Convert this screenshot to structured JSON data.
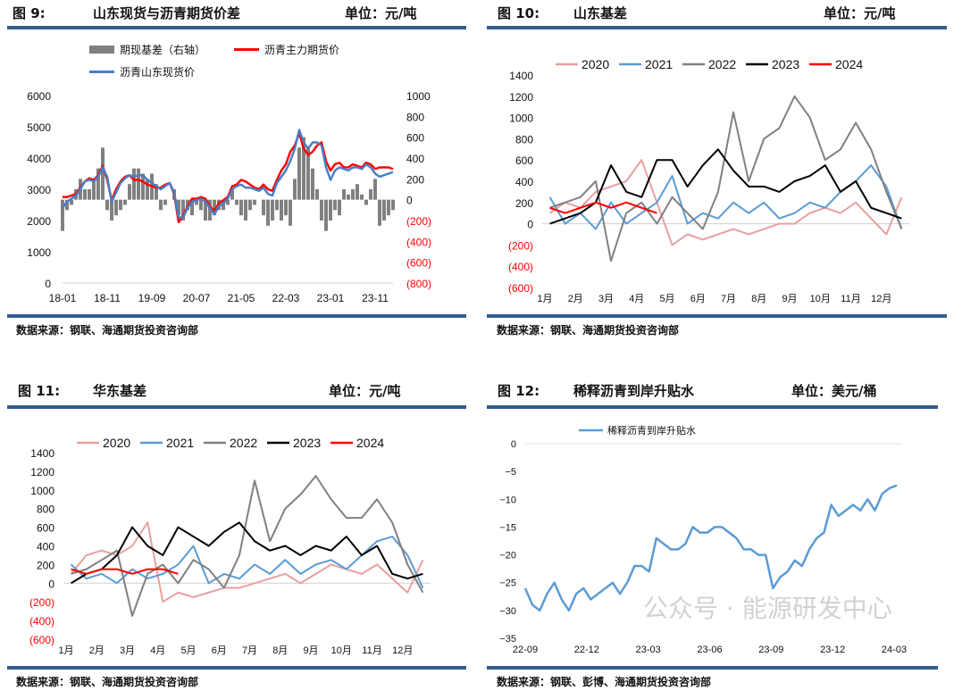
{
  "panels": [
    {
      "fig": "图 9:",
      "title": "山东现货与沥青期货价差",
      "unit": "单位：元/吨",
      "source": "数据来源：钢联、海通期货投资咨询部"
    },
    {
      "fig": "图 10:",
      "title": "山东基差",
      "unit": "单位：元/吨",
      "source": "数据来源：钢联、海通期货投资咨询部"
    },
    {
      "fig": "图 11:",
      "title": "华东基差",
      "unit": "单位：元/吨",
      "source": "数据来源：钢联、海通期货投资咨询部"
    },
    {
      "fig": "图 12:",
      "title": "稀释沥青到岸升贴水",
      "unit": "单位：美元/桶",
      "source": "数据来源：钢联、彭博、海通期货投资咨询部"
    }
  ],
  "watermark": "公众号 · 能源研发中心",
  "chart_data": [
    {
      "type": "line",
      "title": "山东现货与沥青期货价差",
      "x_start": "2018-01",
      "x_step": "month",
      "xticks": [
        "18-01",
        "18-11",
        "19-09",
        "20-07",
        "21-05",
        "22-03",
        "23-01",
        "23-11"
      ],
      "yticks_left": [
        "0",
        "1000",
        "2000",
        "3000",
        "4000",
        "5000",
        "6000"
      ],
      "ylim_left": [
        0,
        6000
      ],
      "yticks_right": [
        "(800)",
        "(600)",
        "(400)",
        "(200)",
        "0",
        "200",
        "400",
        "600",
        "800",
        "1000"
      ],
      "ylim_right": [
        -800,
        1000
      ],
      "series": [
        {
          "name": "期现基差（右轴）",
          "kind": "bar",
          "axis": "right",
          "color": "#808080",
          "values": [
            -300,
            -100,
            -50,
            100,
            200,
            100,
            100,
            200,
            300,
            500,
            -100,
            -200,
            -150,
            -100,
            -50,
            150,
            300,
            300,
            250,
            200,
            250,
            150,
            -100,
            -50,
            0,
            100,
            -150,
            -200,
            -100,
            -150,
            -50,
            -100,
            -200,
            -200,
            -150,
            -100,
            -100,
            -50,
            100,
            -50,
            -150,
            -200,
            -100,
            -50,
            0,
            -150,
            -250,
            -200,
            -100,
            -200,
            -150,
            -250,
            200,
            500,
            600,
            500,
            300,
            100,
            -200,
            -300,
            -200,
            -100,
            -150,
            100,
            50,
            100,
            150,
            50,
            -50,
            100,
            200,
            -250,
            -200,
            -150,
            -100
          ]
        },
        {
          "name": "沥青主力期货价",
          "kind": "line",
          "axis": "left",
          "color": "#ff0000",
          "values": [
            2750,
            2750,
            2800,
            2850,
            3050,
            3250,
            3350,
            3300,
            3450,
            3750,
            3300,
            2650,
            3000,
            3250,
            3400,
            3450,
            3300,
            3300,
            3250,
            3150,
            3100,
            3050,
            3050,
            3150,
            3200,
            2850,
            1950,
            2150,
            2450,
            2700,
            2700,
            2750,
            2700,
            2450,
            2300,
            2550,
            2650,
            2750,
            3100,
            3150,
            3300,
            3250,
            3150,
            3050,
            3000,
            3150,
            3000,
            2950,
            3300,
            3600,
            3800,
            4200,
            4400,
            4800,
            4300,
            4100,
            4200,
            4400,
            4500,
            3900,
            3600,
            3800,
            3850,
            3700,
            3700,
            3800,
            3750,
            3700,
            3850,
            3800,
            3650,
            3700,
            3700,
            3700,
            3650
          ]
        },
        {
          "name": "沥青山东现货价",
          "kind": "line",
          "axis": "left",
          "color": "#4a7ec4",
          "values": [
            2400,
            2600,
            2700,
            2800,
            3000,
            3250,
            3300,
            3250,
            3400,
            3700,
            3400,
            2600,
            2900,
            3200,
            3350,
            3450,
            3400,
            3450,
            3450,
            3300,
            3200,
            3100,
            3000,
            3100,
            3200,
            2900,
            2100,
            2100,
            2400,
            2600,
            2650,
            2700,
            2600,
            2400,
            2200,
            2450,
            2550,
            2700,
            3000,
            3100,
            3150,
            3050,
            3050,
            3000,
            2950,
            3050,
            2850,
            2800,
            3200,
            3400,
            3600,
            3900,
            4300,
            4900,
            4500,
            4300,
            4500,
            4500,
            4400,
            3700,
            3300,
            3600,
            3700,
            3650,
            3600,
            3700,
            3700,
            3650,
            3800,
            3700,
            3500,
            3400,
            3450,
            3500,
            3550
          ]
        }
      ]
    },
    {
      "type": "line",
      "title": "山东基差",
      "x_step": "half-month",
      "xticks": [
        "1月",
        "2月",
        "3月",
        "4月",
        "5月",
        "6月",
        "7月",
        "8月",
        "9月",
        "10月",
        "11月",
        "12月"
      ],
      "yticks": [
        "(600)",
        "(400)",
        "(200)",
        "0",
        "200",
        "400",
        "600",
        "800",
        "1000",
        "1200",
        "1400"
      ],
      "ylim": [
        -600,
        1400
      ],
      "series": [
        {
          "name": "2020",
          "color": "#e8a0a0",
          "values": [
            100,
            200,
            150,
            300,
            350,
            400,
            600,
            200,
            -200,
            -100,
            -150,
            -100,
            -50,
            -100,
            -50,
            0,
            0,
            100,
            150,
            100,
            200,
            50,
            -100,
            250
          ]
        },
        {
          "name": "2021",
          "color": "#5b9bd5",
          "values": [
            250,
            0,
            100,
            -50,
            200,
            0,
            100,
            200,
            450,
            0,
            100,
            50,
            200,
            100,
            200,
            50,
            100,
            200,
            150,
            300,
            400,
            550,
            350,
            -50
          ]
        },
        {
          "name": "2022",
          "color": "#808080",
          "values": [
            150,
            200,
            250,
            400,
            -350,
            100,
            200,
            0,
            250,
            100,
            -50,
            300,
            1050,
            400,
            800,
            900,
            1200,
            1000,
            600,
            700,
            950,
            700,
            300,
            -50
          ]
        },
        {
          "name": "2023",
          "color": "#000000",
          "values": [
            0,
            50,
            100,
            200,
            550,
            300,
            250,
            600,
            600,
            350,
            550,
            700,
            500,
            350,
            350,
            300,
            400,
            450,
            550,
            300,
            400,
            150,
            100,
            50
          ]
        },
        {
          "name": "2024",
          "color": "#ff0000",
          "values": [
            150,
            100,
            150,
            200,
            150,
            200,
            150,
            100
          ]
        }
      ]
    },
    {
      "type": "line",
      "title": "华东基差",
      "x_step": "half-month",
      "xticks": [
        "1月",
        "2月",
        "3月",
        "4月",
        "5月",
        "6月",
        "7月",
        "8月",
        "9月",
        "10月",
        "11月",
        "12月"
      ],
      "yticks": [
        "(600)",
        "(400)",
        "(200)",
        "0",
        "200",
        "400",
        "600",
        "800",
        "1000",
        "1200",
        "1400"
      ],
      "ylim": [
        -600,
        1400
      ],
      "series": [
        {
          "name": "2020",
          "color": "#e8a0a0",
          "values": [
            100,
            300,
            350,
            300,
            400,
            650,
            -200,
            -100,
            -150,
            -100,
            -50,
            -50,
            0,
            50,
            100,
            0,
            100,
            200,
            150,
            100,
            200,
            50,
            -100,
            250
          ]
        },
        {
          "name": "2021",
          "color": "#5b9bd5",
          "values": [
            200,
            50,
            100,
            0,
            150,
            50,
            100,
            200,
            400,
            0,
            100,
            50,
            200,
            100,
            250,
            100,
            200,
            250,
            150,
            300,
            450,
            500,
            300,
            -50
          ]
        },
        {
          "name": "2022",
          "color": "#808080",
          "values": [
            100,
            150,
            250,
            350,
            -350,
            100,
            200,
            0,
            250,
            150,
            -50,
            300,
            1100,
            450,
            800,
            950,
            1150,
            900,
            700,
            700,
            900,
            650,
            200,
            -100
          ]
        },
        {
          "name": "2023",
          "color": "#000000",
          "values": [
            0,
            100,
            150,
            300,
            600,
            400,
            300,
            600,
            500,
            400,
            550,
            650,
            450,
            350,
            400,
            300,
            400,
            350,
            500,
            300,
            400,
            100,
            50,
            100
          ]
        },
        {
          "name": "2024",
          "color": "#ff0000",
          "values": [
            150,
            100,
            150,
            150,
            100,
            150,
            150,
            100
          ]
        }
      ]
    },
    {
      "type": "line",
      "title": "稀释沥青到岸升贴水",
      "x_start": "2022-09",
      "x_end": "2024-03",
      "xticks": [
        "22-09",
        "22-12",
        "23-03",
        "23-06",
        "23-09",
        "23-12",
        "24-03"
      ],
      "yticks": [
        "−35",
        "−30",
        "−25",
        "−20",
        "−15",
        "−10",
        "−5",
        "0"
      ],
      "ylim": [
        -35,
        0
      ],
      "series": [
        {
          "name": "稀释沥青到岸升贴水",
          "color": "#5b9bd5",
          "values": [
            -26,
            -29,
            -30,
            -27,
            -25,
            -28,
            -30,
            -27,
            -26,
            -28,
            -27,
            -26,
            -25,
            -27,
            -25,
            -22,
            -22,
            -23,
            -17,
            -18,
            -19,
            -19,
            -18,
            -15,
            -16,
            -16,
            -15,
            -15,
            -16,
            -17,
            -19,
            -19,
            -20,
            -20,
            -26,
            -24,
            -23,
            -21,
            -22,
            -19,
            -17,
            -16,
            -11,
            -13,
            -12,
            -11,
            -12,
            -10,
            -12,
            -9,
            -8,
            -7.5
          ]
        }
      ]
    }
  ]
}
